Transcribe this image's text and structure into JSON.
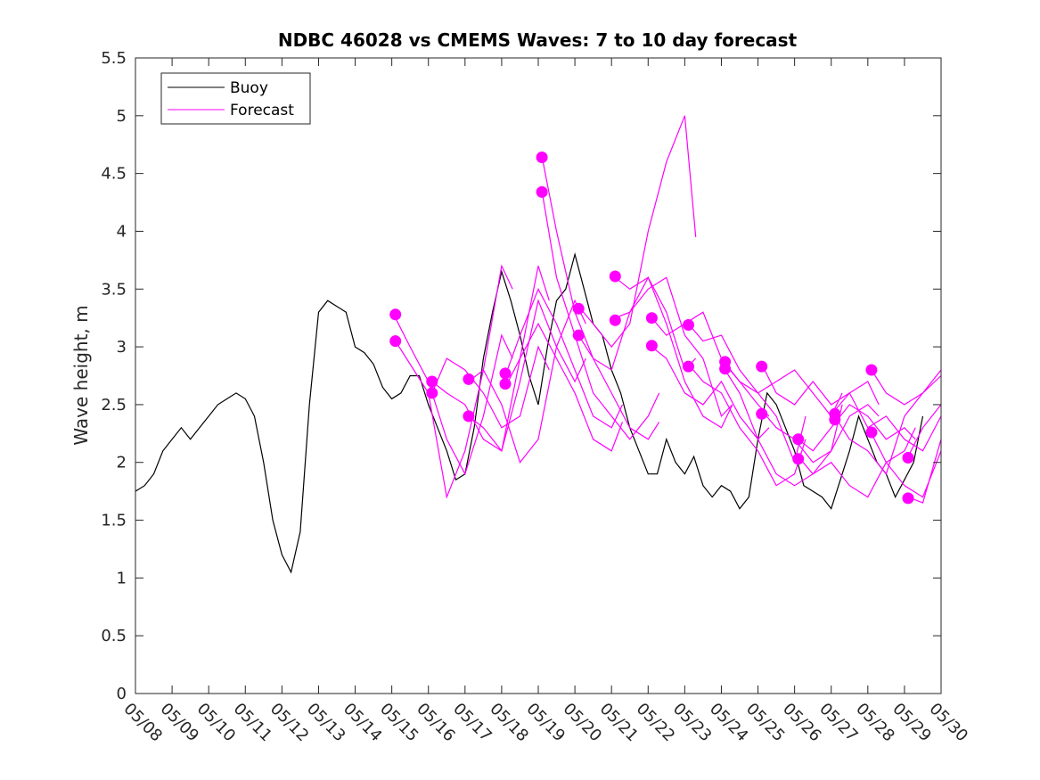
{
  "chart_data": {
    "type": "line",
    "title": "NDBC 46028 vs CMEMS Waves: 7 to 10 day forecast",
    "xlabel": "",
    "ylabel": "Wave height, m",
    "xlim": [
      0,
      22
    ],
    "ylim": [
      0,
      5.5
    ],
    "x_ticks": [
      "05/08",
      "05/09",
      "05/10",
      "05/11",
      "05/12",
      "05/13",
      "05/14",
      "05/15",
      "05/16",
      "05/17",
      "05/18",
      "05/19",
      "05/20",
      "05/21",
      "05/22",
      "05/23",
      "05/24",
      "05/25",
      "05/26",
      "05/27",
      "05/28",
      "05/29",
      "05/30"
    ],
    "y_ticks": [
      "0",
      "0.5",
      "1",
      "1.5",
      "2",
      "2.5",
      "3",
      "3.5",
      "4",
      "4.5",
      "5",
      "5.5"
    ],
    "x_units": "days since 05/08",
    "legend": {
      "position": "top-left",
      "entries": [
        {
          "label": "Buoy",
          "color": "#000000"
        },
        {
          "label": "Forecast",
          "color": "#ff00ff"
        }
      ]
    },
    "colors": {
      "buoy": "#000000",
      "forecast": "#ff00ff"
    },
    "buoy": {
      "name": "Buoy",
      "x": [
        0,
        0.25,
        0.5,
        0.75,
        1,
        1.25,
        1.5,
        1.75,
        2,
        2.25,
        2.5,
        2.75,
        3,
        3.25,
        3.5,
        3.75,
        4,
        4.25,
        4.5,
        4.75,
        5,
        5.25,
        5.5,
        5.75,
        6,
        6.25,
        6.5,
        6.75,
        7,
        7.25,
        7.5,
        7.75,
        8,
        8.25,
        8.5,
        8.75,
        9,
        9.25,
        9.5,
        9.75,
        10,
        10.25,
        10.5,
        10.75,
        11,
        11.25,
        11.5,
        11.75,
        12,
        12.25,
        12.5,
        12.75,
        13,
        13.25,
        13.5,
        13.75,
        14,
        14.25,
        14.5,
        14.75,
        15,
        15.25,
        15.5,
        15.75,
        16,
        16.25,
        16.5,
        16.75,
        17,
        17.25,
        17.5,
        17.75,
        18,
        18.25,
        18.5,
        18.75,
        19,
        19.25,
        19.5,
        19.75,
        20,
        20.25,
        20.5,
        20.75,
        21,
        21.25,
        21.5
      ],
      "y": [
        1.75,
        1.8,
        1.9,
        2.1,
        2.2,
        2.3,
        2.2,
        2.3,
        2.4,
        2.5,
        2.55,
        2.6,
        2.55,
        2.4,
        2.0,
        1.5,
        1.2,
        1.05,
        1.4,
        2.5,
        3.3,
        3.4,
        3.35,
        3.3,
        3.0,
        2.95,
        2.85,
        2.65,
        2.55,
        2.6,
        2.75,
        2.75,
        2.5,
        2.3,
        2.1,
        1.85,
        1.9,
        2.3,
        2.9,
        3.3,
        3.65,
        3.4,
        3.1,
        2.75,
        2.5,
        3.0,
        3.4,
        3.5,
        3.8,
        3.5,
        3.2,
        3.1,
        2.8,
        2.6,
        2.3,
        2.1,
        1.9,
        1.9,
        2.2,
        2.0,
        1.9,
        2.05,
        1.8,
        1.7,
        1.8,
        1.75,
        1.6,
        1.7,
        2.2,
        2.6,
        2.5,
        2.3,
        2.1,
        1.8,
        1.75,
        1.7,
        1.6,
        1.85,
        2.1,
        2.4,
        2.2,
        2.0,
        1.9,
        1.7,
        1.85,
        2.0,
        2.4
      ]
    },
    "forecasts": [
      {
        "x": [
          7.1,
          7.5,
          8,
          8.5,
          9,
          9.5,
          10,
          10.3
        ],
        "y": [
          3.25,
          3.0,
          2.7,
          2.2,
          1.9,
          2.4,
          3.1,
          2.9
        ]
      },
      {
        "x": [
          7.1,
          7.5,
          8,
          8.5,
          9,
          9.5,
          10,
          10.3
        ],
        "y": [
          3.05,
          2.85,
          2.6,
          1.7,
          2.1,
          2.8,
          3.7,
          3.5
        ]
      },
      {
        "x": [
          8.1,
          8.5,
          9,
          9.5,
          10,
          10.5,
          11,
          11.3
        ],
        "y": [
          2.7,
          2.6,
          2.5,
          2.2,
          2.1,
          2.9,
          3.7,
          3.4
        ]
      },
      {
        "x": [
          8.1,
          8.5,
          9,
          9.5,
          10,
          10.5,
          11,
          11.3
        ],
        "y": [
          2.6,
          2.9,
          2.8,
          2.6,
          2.3,
          2.4,
          3.0,
          2.8
        ]
      },
      {
        "x": [
          9.1,
          9.5,
          10,
          10.5,
          11,
          11.5,
          12,
          12.3
        ],
        "y": [
          2.7,
          2.8,
          2.5,
          2.0,
          2.2,
          3.0,
          3.4,
          3.2
        ]
      },
      {
        "x": [
          9.1,
          9.5,
          10,
          10.5,
          11,
          11.5,
          12,
          12.3
        ],
        "y": [
          2.4,
          2.3,
          2.1,
          2.7,
          3.4,
          3.0,
          2.7,
          2.9
        ]
      },
      {
        "x": [
          10.1,
          10.5,
          11,
          11.5,
          12,
          12.5,
          13,
          13.3
        ],
        "y": [
          2.75,
          3.1,
          3.5,
          3.2,
          2.8,
          2.4,
          2.3,
          2.5
        ]
      },
      {
        "x": [
          10.1,
          10.5,
          11,
          11.5,
          12,
          12.5,
          13,
          13.3
        ],
        "y": [
          2.65,
          2.9,
          3.2,
          2.9,
          2.6,
          2.2,
          2.1,
          2.35
        ]
      },
      {
        "x": [
          11.1,
          11.5,
          12,
          12.5,
          13,
          13.5,
          14,
          14.3
        ],
        "y": [
          4.65,
          4.0,
          3.3,
          2.9,
          2.6,
          2.3,
          2.2,
          2.35
        ]
      },
      {
        "x": [
          11.1,
          11.5,
          12,
          12.5,
          13,
          13.5,
          14,
          14.3
        ],
        "y": [
          4.35,
          3.6,
          3.1,
          2.6,
          2.4,
          2.2,
          2.4,
          2.6
        ]
      },
      {
        "x": [
          12.1,
          12.5,
          13,
          13.5,
          14,
          14.5,
          15,
          15.3
        ],
        "y": [
          3.35,
          3.2,
          3.0,
          3.2,
          4.0,
          4.6,
          5.0,
          3.95
        ]
      },
      {
        "x": [
          12.1,
          12.5,
          13,
          13.5,
          14,
          14.5,
          15,
          15.3
        ],
        "y": [
          3.1,
          2.9,
          2.8,
          3.3,
          3.6,
          3.3,
          2.8,
          2.9
        ]
      },
      {
        "x": [
          13.1,
          13.5,
          14,
          14.5,
          15,
          15.5,
          16,
          16.3
        ],
        "y": [
          3.6,
          3.5,
          3.6,
          3.2,
          2.7,
          2.4,
          2.3,
          2.5
        ]
      },
      {
        "x": [
          13.1,
          13.5,
          14,
          14.5,
          15,
          15.5,
          16,
          16.3
        ],
        "y": [
          3.25,
          3.3,
          3.5,
          3.6,
          3.1,
          2.9,
          2.4,
          2.5
        ]
      },
      {
        "x": [
          14.1,
          14.5,
          15,
          15.5,
          16,
          16.5,
          17,
          17.3
        ],
        "y": [
          3.25,
          3.1,
          3.2,
          3.3,
          2.9,
          2.7,
          2.5,
          2.4
        ]
      },
      {
        "x": [
          14.1,
          14.5,
          15,
          15.5,
          16,
          16.5,
          17,
          17.3
        ],
        "y": [
          3.0,
          2.9,
          2.6,
          2.5,
          2.7,
          2.4,
          2.2,
          2.3
        ]
      },
      {
        "x": [
          15.1,
          15.5,
          16,
          16.5,
          17,
          17.5,
          18,
          18.3
        ],
        "y": [
          3.2,
          3.05,
          3.1,
          2.8,
          2.6,
          2.4,
          2.0,
          2.4
        ]
      },
      {
        "x": [
          15.1,
          15.5,
          16,
          16.5,
          17,
          17.5,
          18,
          18.3
        ],
        "y": [
          2.85,
          2.7,
          2.6,
          2.3,
          2.1,
          1.8,
          1.9,
          2.2
        ]
      },
      {
        "x": [
          16.1,
          16.5,
          17,
          17.5,
          18,
          18.5,
          19,
          19.3
        ],
        "y": [
          2.85,
          2.7,
          2.6,
          2.7,
          2.8,
          2.6,
          2.4,
          2.6
        ]
      },
      {
        "x": [
          16.1,
          16.5,
          17,
          17.5,
          18,
          18.5,
          19,
          19.3
        ],
        "y": [
          2.8,
          2.6,
          2.2,
          1.9,
          1.8,
          1.9,
          2.1,
          2.5
        ]
      },
      {
        "x": [
          17.1,
          17.5,
          18,
          18.5,
          19,
          19.5,
          20,
          20.3
        ],
        "y": [
          2.85,
          2.6,
          2.5,
          2.7,
          2.5,
          2.6,
          2.7,
          2.5
        ]
      },
      {
        "x": [
          17.1,
          17.5,
          18,
          18.5,
          19,
          19.5,
          20,
          20.3
        ],
        "y": [
          2.45,
          2.3,
          2.2,
          2.0,
          2.1,
          2.4,
          2.5,
          2.4
        ]
      },
      {
        "x": [
          18.1,
          18.5,
          19,
          19.5,
          20,
          20.5,
          21,
          21.3
        ],
        "y": [
          2.2,
          2.1,
          2.3,
          2.5,
          2.4,
          2.2,
          2.3,
          2.2
        ]
      },
      {
        "x": [
          18.1,
          18.5,
          19,
          19.5,
          20,
          20.5,
          21,
          21.3
        ],
        "y": [
          2.05,
          1.9,
          2.0,
          1.8,
          1.7,
          2.0,
          2.1,
          2.3
        ]
      },
      {
        "x": [
          19.1,
          19.5,
          20,
          20.5,
          21,
          21.5,
          22
        ],
        "y": [
          2.45,
          2.6,
          2.3,
          2.4,
          2.2,
          2.1,
          2.4
        ]
      },
      {
        "x": [
          19.1,
          19.5,
          20,
          20.5,
          21,
          21.5,
          22
        ],
        "y": [
          2.4,
          2.2,
          2.1,
          1.9,
          2.4,
          2.6,
          2.8
        ]
      },
      {
        "x": [
          20.1,
          20.5,
          21,
          21.5,
          22
        ],
        "y": [
          2.8,
          2.6,
          2.5,
          2.6,
          2.75
        ]
      },
      {
        "x": [
          20.1,
          20.5,
          21,
          21.5,
          22
        ],
        "y": [
          2.25,
          2.0,
          1.8,
          1.7,
          2.1
        ]
      },
      {
        "x": [
          21.1,
          21.5,
          22
        ],
        "y": [
          2.05,
          2.3,
          2.5
        ]
      },
      {
        "x": [
          21.1,
          21.5,
          22
        ],
        "y": [
          1.7,
          1.65,
          2.2
        ]
      }
    ],
    "markers": {
      "x": [
        7.1,
        7.1,
        8.1,
        8.1,
        9.1,
        9.1,
        10.1,
        10.1,
        11.1,
        11.1,
        12.1,
        12.1,
        13.1,
        13.1,
        14.1,
        14.1,
        15.1,
        15.1,
        16.1,
        16.1,
        17.1,
        17.1,
        18.1,
        18.1,
        19.1,
        19.1,
        20.1,
        20.1,
        21.1,
        21.1
      ],
      "y": [
        3.28,
        3.05,
        2.7,
        2.6,
        2.72,
        2.4,
        2.77,
        2.68,
        4.64,
        4.34,
        3.33,
        3.1,
        3.61,
        3.23,
        3.25,
        3.01,
        3.19,
        2.83,
        2.87,
        2.81,
        2.83,
        2.42,
        2.2,
        2.03,
        2.42,
        2.37,
        2.8,
        2.26,
        2.04,
        1.69
      ]
    }
  }
}
